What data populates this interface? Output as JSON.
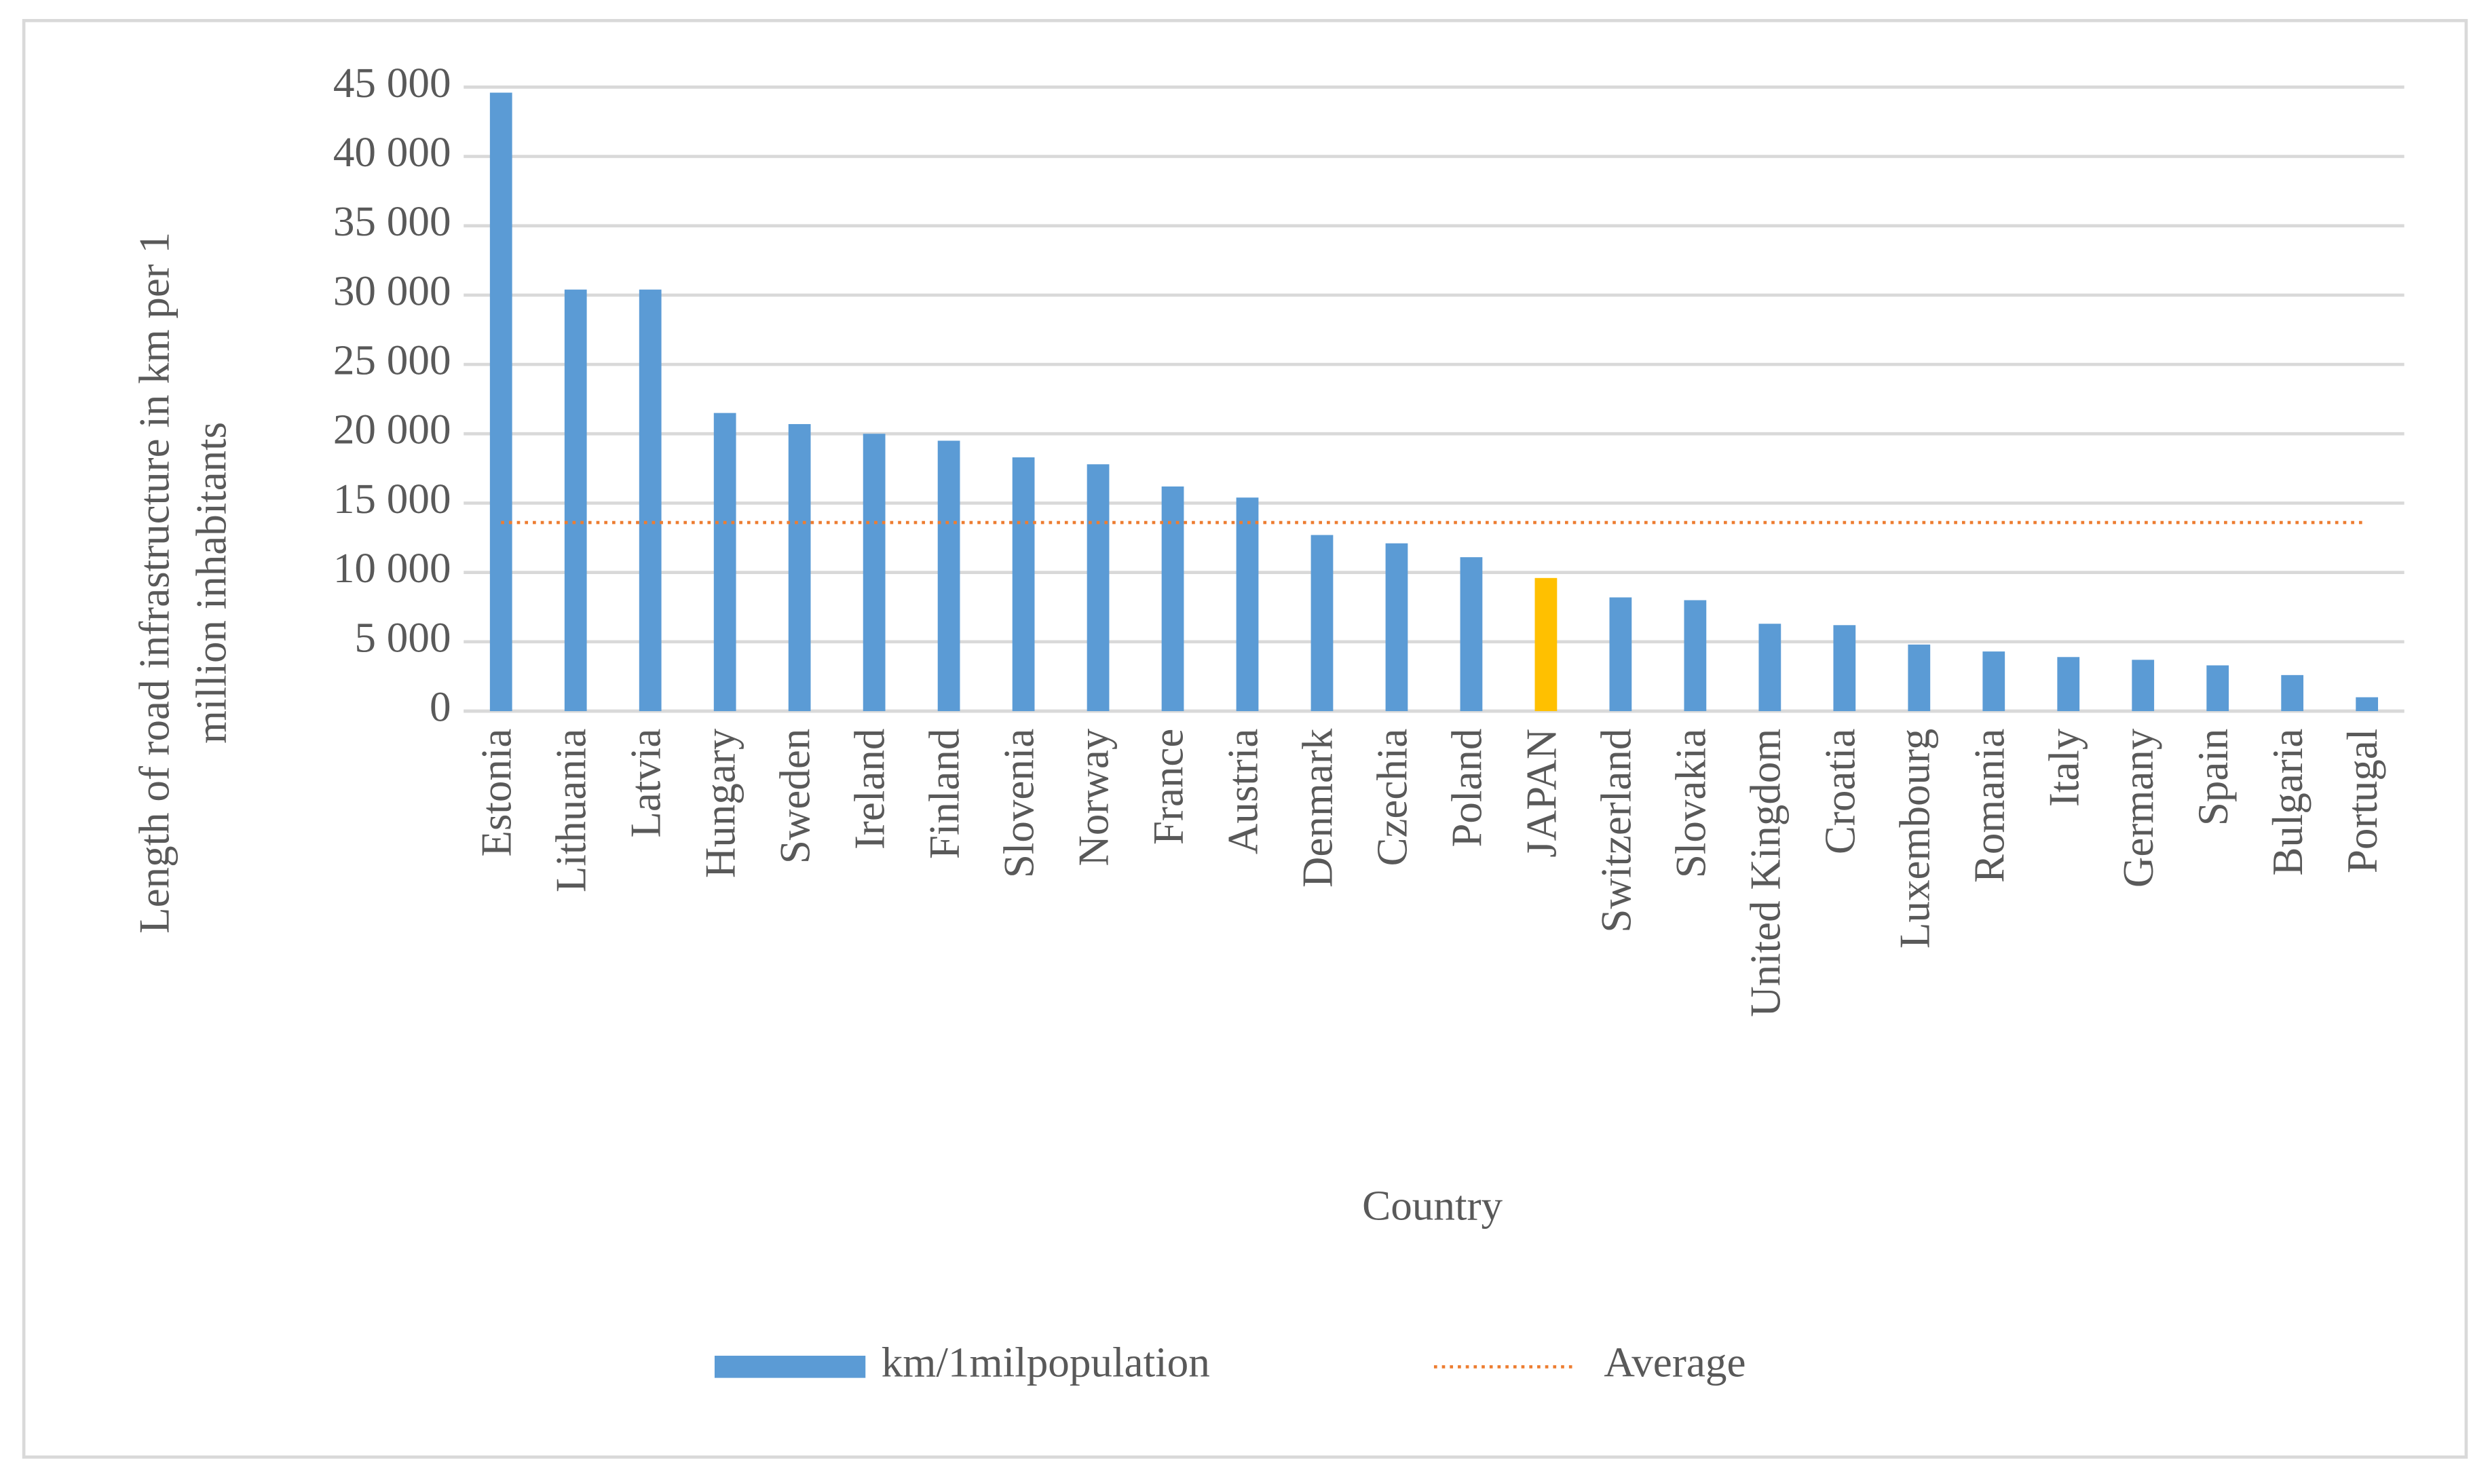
{
  "chart_data": {
    "type": "bar",
    "xlabel": "Country",
    "ylabel": [
      "Length of road infrastructure in km per 1",
      "million inhabitants"
    ],
    "categories": [
      "Estonia",
      "Lithuania",
      "Latvia",
      "Hungary",
      "Sweden",
      "Ireland",
      "Finland",
      "Slovenia",
      "Norway",
      "France",
      "Austria",
      "Denmark",
      "Czechia",
      "Poland",
      "JAPAN",
      "Switzerland",
      "Slovakia",
      "United Kingdom",
      "Croatia",
      "Luxembourg",
      "Romania",
      "Italy",
      "Germany",
      "Spain",
      "Bulgaria",
      "Portugal"
    ],
    "series": [
      {
        "name": "km/1milpopulation",
        "color": "#5b9bd5",
        "values": [
          44600,
          30400,
          30400,
          21500,
          20700,
          20000,
          19500,
          18300,
          17800,
          16200,
          15400,
          12700,
          12100,
          11100,
          9600,
          8200,
          8000,
          6300,
          6200,
          4800,
          4300,
          3900,
          3700,
          3300,
          2600,
          1000
        ],
        "point_colors": [
          "#5b9bd5",
          "#5b9bd5",
          "#5b9bd5",
          "#5b9bd5",
          "#5b9bd5",
          "#5b9bd5",
          "#5b9bd5",
          "#5b9bd5",
          "#5b9bd5",
          "#5b9bd5",
          "#5b9bd5",
          "#5b9bd5",
          "#5b9bd5",
          "#5b9bd5",
          "#ffc000",
          "#5b9bd5",
          "#5b9bd5",
          "#5b9bd5",
          "#5b9bd5",
          "#5b9bd5",
          "#5b9bd5",
          "#5b9bd5",
          "#5b9bd5",
          "#5b9bd5",
          "#5b9bd5",
          "#5b9bd5"
        ]
      }
    ],
    "average": {
      "name": "Average",
      "color": "#ed7d31",
      "value": 13600
    },
    "ylim": [
      0,
      45000
    ],
    "yticks": [
      0,
      {
        "value": 5000,
        "label": "5 000"
      },
      {
        "value": 10000,
        "label": "10 000"
      },
      {
        "value": 15000,
        "label": "15 000"
      },
      {
        "value": 20000,
        "label": "20 000"
      },
      {
        "value": 25000,
        "label": "25 000"
      },
      {
        "value": 30000,
        "label": "30 000"
      },
      {
        "value": 35000,
        "label": "35 000"
      },
      {
        "value": 40000,
        "label": "40 000"
      },
      {
        "value": 45000,
        "label": "45 000"
      }
    ],
    "grid": true,
    "legend": "bottom"
  }
}
